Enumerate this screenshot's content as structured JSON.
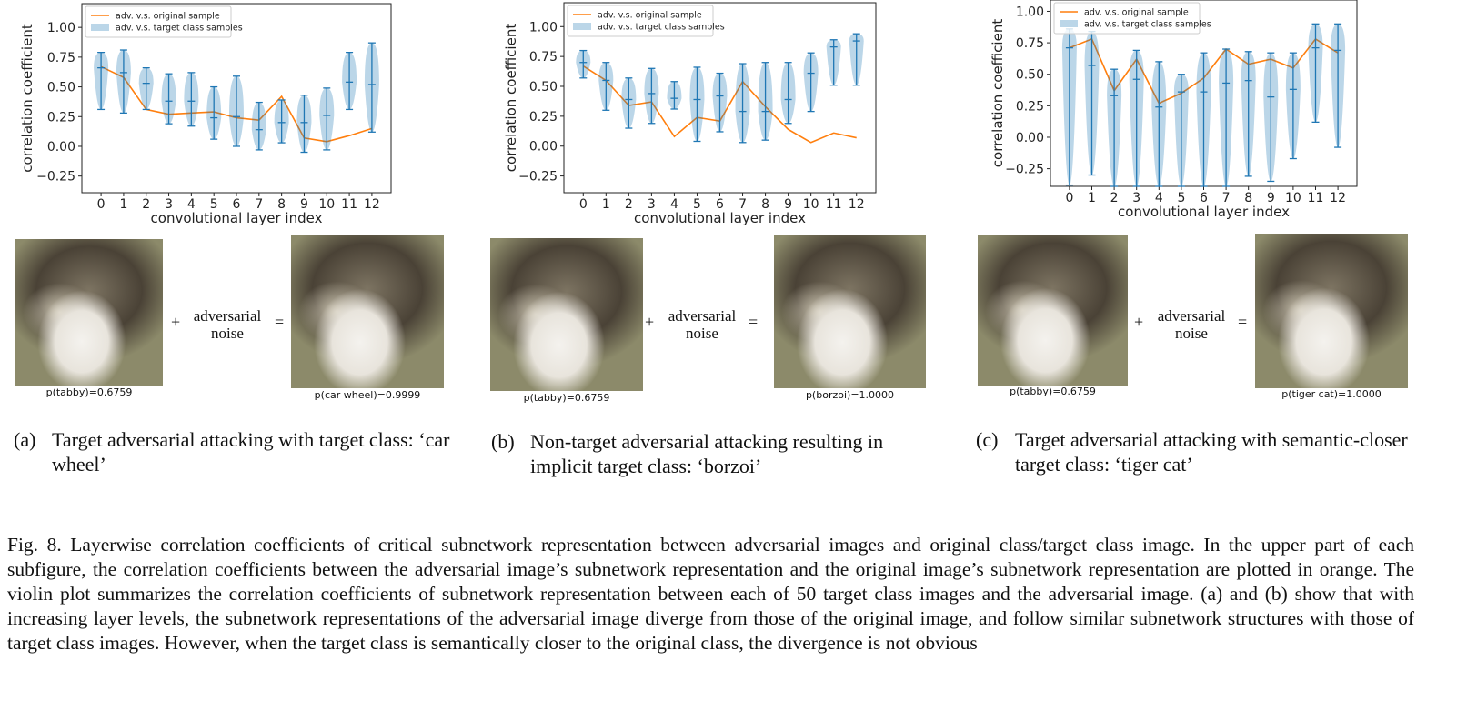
{
  "chart_data": [
    {
      "type": "violin",
      "xlabel": "convolutional layer index",
      "ylabel": "correlation coefficient",
      "categories": [
        "0",
        "1",
        "2",
        "3",
        "4",
        "5",
        "6",
        "7",
        "8",
        "9",
        "10",
        "11",
        "12"
      ],
      "ylim": [
        -0.39,
        1.2
      ],
      "yticks": [
        {
          "value": -0.25,
          "label": "−0.25"
        },
        {
          "value": 0,
          "label": "0.00"
        },
        {
          "value": 0.25,
          "label": "0.25"
        },
        {
          "value": 0.5,
          "label": "0.50"
        },
        {
          "value": 0.75,
          "label": "0.75"
        },
        {
          "value": 1,
          "label": "1.00"
        }
      ],
      "legend": "upper left",
      "series": [
        {
          "name": "adv. v.s. original sample",
          "color": "#ff7f0e",
          "values": [
            0.67,
            0.58,
            0.31,
            0.27,
            0.28,
            0.29,
            0.24,
            0.22,
            0.42,
            0.07,
            0.04,
            0.09,
            0.15
          ]
        },
        {
          "name": "adv. v.s. target class samples",
          "color": "#1f77b4",
          "min": [
            0.31,
            0.28,
            0.31,
            0.19,
            0.17,
            0.06,
            0.0,
            -0.03,
            0.03,
            -0.05,
            -0.03,
            0.31,
            0.12
          ],
          "median": [
            0.66,
            0.62,
            0.53,
            0.38,
            0.38,
            0.24,
            0.25,
            0.14,
            0.2,
            0.2,
            0.26,
            0.54,
            0.52
          ],
          "max": [
            0.79,
            0.81,
            0.66,
            0.61,
            0.62,
            0.5,
            0.59,
            0.37,
            0.39,
            0.43,
            0.49,
            0.79,
            0.87
          ]
        }
      ]
    },
    {
      "type": "violin",
      "xlabel": "convolutional layer index",
      "ylabel": "correlation coefficient",
      "categories": [
        "0",
        "1",
        "2",
        "3",
        "4",
        "5",
        "6",
        "7",
        "8",
        "9",
        "10",
        "11",
        "12"
      ],
      "ylim": [
        -0.39,
        1.2
      ],
      "yticks": [
        {
          "value": -0.25,
          "label": "−0.25"
        },
        {
          "value": 0,
          "label": "0.00"
        },
        {
          "value": 0.25,
          "label": "0.25"
        },
        {
          "value": 0.5,
          "label": "0.50"
        },
        {
          "value": 0.75,
          "label": "0.75"
        },
        {
          "value": 1,
          "label": "1.00"
        }
      ],
      "legend": "upper left",
      "series": [
        {
          "name": "adv. v.s. original sample",
          "color": "#ff7f0e",
          "values": [
            0.67,
            0.55,
            0.34,
            0.37,
            0.08,
            0.24,
            0.21,
            0.54,
            0.33,
            0.14,
            0.03,
            0.11,
            0.07
          ]
        },
        {
          "name": "adv. v.s. target class samples",
          "color": "#1f77b4",
          "min": [
            0.57,
            0.3,
            0.15,
            0.19,
            0.31,
            0.04,
            0.12,
            0.03,
            0.05,
            0.19,
            0.29,
            0.51,
            0.51
          ],
          "median": [
            0.7,
            0.55,
            0.39,
            0.44,
            0.4,
            0.39,
            0.42,
            0.29,
            0.29,
            0.39,
            0.61,
            0.83,
            0.88
          ],
          "max": [
            0.8,
            0.7,
            0.57,
            0.65,
            0.54,
            0.66,
            0.61,
            0.69,
            0.7,
            0.7,
            0.78,
            0.89,
            0.94
          ]
        }
      ]
    },
    {
      "type": "violin",
      "xlabel": "convolutional layer index",
      "ylabel": "correlation coefficient",
      "categories": [
        "0",
        "1",
        "2",
        "3",
        "4",
        "5",
        "6",
        "7",
        "8",
        "9",
        "10",
        "11",
        "12"
      ],
      "ylim": [
        -0.39,
        1.09
      ],
      "yticks": [
        {
          "value": -0.25,
          "label": "−0.25"
        },
        {
          "value": 0,
          "label": "0.00"
        },
        {
          "value": 0.25,
          "label": "0.25"
        },
        {
          "value": 0.5,
          "label": "0.50"
        },
        {
          "value": 0.75,
          "label": "0.75"
        },
        {
          "value": 1,
          "label": "1.00"
        }
      ],
      "legend": "upper left",
      "series": [
        {
          "name": "adv. v.s. original sample",
          "color": "#ff7f0e",
          "values": [
            0.71,
            0.78,
            0.37,
            0.62,
            0.27,
            0.35,
            0.47,
            0.7,
            0.58,
            0.62,
            0.55,
            0.78,
            0.67
          ]
        },
        {
          "name": "adv. v.s. target class samples",
          "color": "#1f77b4",
          "min": [
            -0.38,
            -0.3,
            -0.39,
            -0.39,
            -0.39,
            -0.39,
            -0.39,
            -0.39,
            -0.31,
            -0.35,
            -0.17,
            0.12,
            -0.08
          ],
          "median": [
            0.71,
            0.57,
            0.33,
            0.46,
            0.24,
            0.36,
            0.36,
            0.43,
            0.45,
            0.32,
            0.38,
            0.71,
            0.69
          ],
          "max": [
            0.86,
            0.84,
            0.54,
            0.69,
            0.6,
            0.5,
            0.67,
            0.7,
            0.68,
            0.67,
            0.67,
            0.9,
            0.9
          ]
        }
      ]
    }
  ],
  "panels": [
    {
      "images": [
        {
          "label": "p(tabby)=0.6759"
        },
        {
          "label": "p(car wheel)=0.9999"
        }
      ],
      "plus": "+",
      "noise": "adversarial noise",
      "equals": "=",
      "sublabel": "(a)",
      "subcaption": "Target adversarial attacking with target class: ‘car wheel’"
    },
    {
      "images": [
        {
          "label": "p(tabby)=0.6759"
        },
        {
          "label": "p(borzoi)=1.0000"
        }
      ],
      "plus": "+",
      "noise": "adversarial noise",
      "equals": "=",
      "sublabel": "(b)",
      "subcaption": "Non-target adversarial attacking resulting in implicit target class: ‘borzoi’"
    },
    {
      "images": [
        {
          "label": "p(tabby)=0.6759"
        },
        {
          "label": "p(tiger cat)=1.0000"
        }
      ],
      "plus": "+",
      "noise": "adversarial noise",
      "equals": "=",
      "sublabel": "(c)",
      "subcaption": "Target adversarial attacking with semantic-closer target class: ‘tiger cat’"
    }
  ],
  "figure_caption": "Fig. 8.  Layerwise correlation coefficients of critical subnetwork representation between adversarial images and original class/target class image. In the upper part of each subfigure, the correlation coefficients between the adversarial image’s subnetwork representation and the original image’s subnetwork representation are plotted in orange. The violin plot summarizes the correlation coefficients of subnetwork representation between each of 50 target class images and the adversarial image. (a) and (b) show that with increasing layer levels, the subnetwork representations of the adversarial image diverge from those of the original image, and follow similar subnetwork structures with those of target class images. However, when the target class is semantically closer to the original class, the divergence is not obvious"
}
